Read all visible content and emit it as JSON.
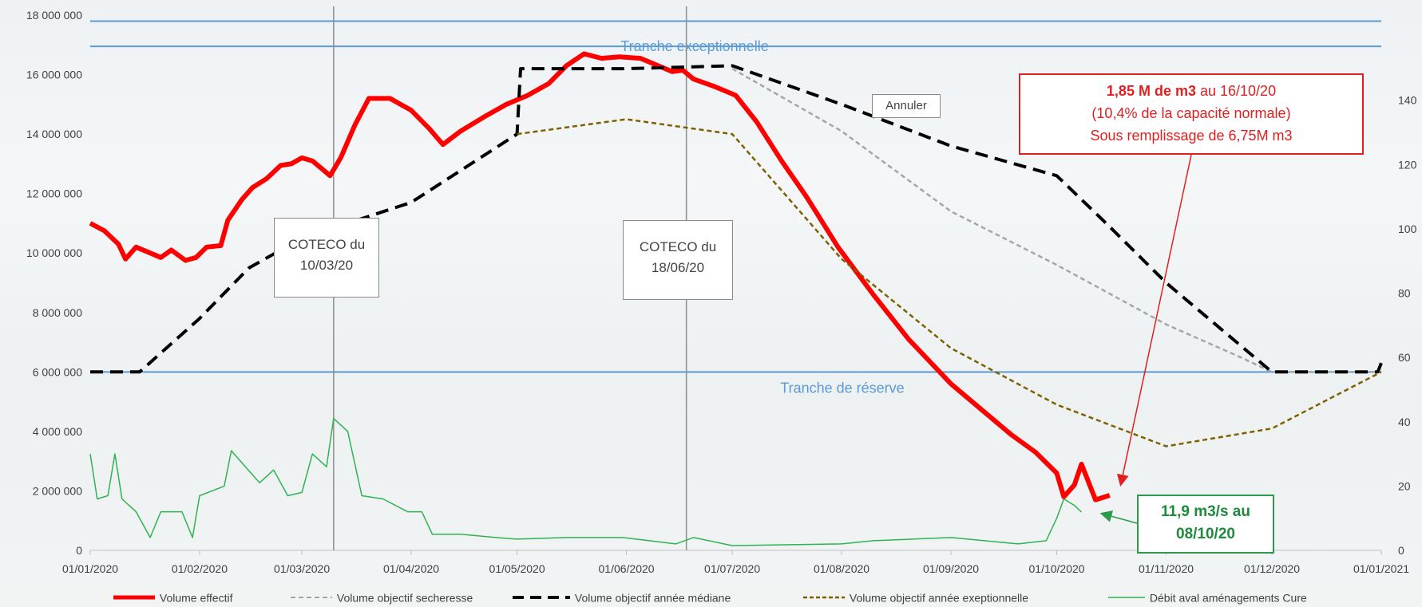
{
  "chart_data": {
    "type": "line",
    "y_left": {
      "min": 0,
      "max": 18000000,
      "ticks": [
        "0",
        "2 000 000",
        "4 000 000",
        "6 000 000",
        "8 000 000",
        "10 000 000",
        "12 000 000",
        "14 000 000",
        "16 000 000",
        "18 000 000"
      ]
    },
    "y_right": {
      "min": 0,
      "max": 160,
      "ticks": [
        "0",
        "20",
        "40",
        "60",
        "80",
        "100",
        "120",
        "140"
      ]
    },
    "x_range": [
      "2020-01-01",
      "2021-01-01"
    ],
    "x_ticks": [
      {
        "date": "2020-01-01",
        "label": "01/01/2020"
      },
      {
        "date": "2020-02-01",
        "label": "01/02/2020"
      },
      {
        "date": "2020-03-01",
        "label": "01/03/2020"
      },
      {
        "date": "2020-04-01",
        "label": "01/04/2020"
      },
      {
        "date": "2020-05-01",
        "label": "01/05/2020"
      },
      {
        "date": "2020-06-01",
        "label": "01/06/2020"
      },
      {
        "date": "2020-07-01",
        "label": "01/07/2020"
      },
      {
        "date": "2020-08-01",
        "label": "01/08/2020"
      },
      {
        "date": "2020-09-01",
        "label": "01/09/2020"
      },
      {
        "date": "2020-10-01",
        "label": "01/10/2020"
      },
      {
        "date": "2020-11-01",
        "label": "01/11/2020"
      },
      {
        "date": "2020-12-01",
        "label": "01/12/2020"
      },
      {
        "date": "2021-01-01",
        "label": "01/01/2021"
      }
    ],
    "grid": false,
    "legend_position": "bottom",
    "horizontal_lines": [
      {
        "label": "Tranche exceptionnelle",
        "values": [
          16950000,
          17800000
        ],
        "color": "#5b9bd5"
      },
      {
        "label": "Tranche de réserve",
        "values": [
          6000000
        ],
        "color": "#5b9bd5"
      }
    ],
    "vertical_markers": [
      {
        "date": "2020-03-10",
        "label_line1": "COTECO du",
        "label_line2": "10/03/20"
      },
      {
        "date": "2020-06-18",
        "label_line1": "COTECO du",
        "label_line2": "18/06/20"
      }
    ],
    "series": [
      {
        "name": "Volume effectif",
        "color": "#ff0000",
        "style": "solid-thick",
        "axis": "left",
        "points": [
          [
            "2020-01-01",
            11000000
          ],
          [
            "2020-01-05",
            10750000
          ],
          [
            "2020-01-09",
            10300000
          ],
          [
            "2020-01-11",
            9800000
          ],
          [
            "2020-01-14",
            10200000
          ],
          [
            "2020-01-18",
            10000000
          ],
          [
            "2020-01-21",
            9850000
          ],
          [
            "2020-01-24",
            10100000
          ],
          [
            "2020-01-28",
            9750000
          ],
          [
            "2020-01-31",
            9850000
          ],
          [
            "2020-02-03",
            10200000
          ],
          [
            "2020-02-07",
            10250000
          ],
          [
            "2020-02-09",
            11100000
          ],
          [
            "2020-02-13",
            11800000
          ],
          [
            "2020-02-16",
            12200000
          ],
          [
            "2020-02-20",
            12500000
          ],
          [
            "2020-02-24",
            12950000
          ],
          [
            "2020-02-27",
            13000000
          ],
          [
            "2020-03-01",
            13200000
          ],
          [
            "2020-03-04",
            13100000
          ],
          [
            "2020-03-07",
            12800000
          ],
          [
            "2020-03-09",
            12600000
          ],
          [
            "2020-03-12",
            13200000
          ],
          [
            "2020-03-16",
            14300000
          ],
          [
            "2020-03-20",
            15200000
          ],
          [
            "2020-03-26",
            15200000
          ],
          [
            "2020-04-01",
            14800000
          ],
          [
            "2020-04-06",
            14200000
          ],
          [
            "2020-04-10",
            13650000
          ],
          [
            "2020-04-15",
            14100000
          ],
          [
            "2020-04-22",
            14600000
          ],
          [
            "2020-04-28",
            15000000
          ],
          [
            "2020-05-04",
            15300000
          ],
          [
            "2020-05-10",
            15700000
          ],
          [
            "2020-05-15",
            16300000
          ],
          [
            "2020-05-20",
            16700000
          ],
          [
            "2020-05-25",
            16550000
          ],
          [
            "2020-05-30",
            16600000
          ],
          [
            "2020-06-05",
            16550000
          ],
          [
            "2020-06-10",
            16300000
          ],
          [
            "2020-06-14",
            16100000
          ],
          [
            "2020-06-17",
            16150000
          ],
          [
            "2020-06-20",
            15850000
          ],
          [
            "2020-06-26",
            15600000
          ],
          [
            "2020-07-02",
            15300000
          ],
          [
            "2020-07-08",
            14400000
          ],
          [
            "2020-07-15",
            13100000
          ],
          [
            "2020-07-22",
            11900000
          ],
          [
            "2020-07-31",
            10200000
          ],
          [
            "2020-08-10",
            8600000
          ],
          [
            "2020-08-20",
            7100000
          ],
          [
            "2020-09-01",
            5600000
          ],
          [
            "2020-09-10",
            4700000
          ],
          [
            "2020-09-18",
            3900000
          ],
          [
            "2020-09-25",
            3300000
          ],
          [
            "2020-10-01",
            2600000
          ],
          [
            "2020-10-03",
            1800000
          ],
          [
            "2020-10-06",
            2200000
          ],
          [
            "2020-10-08",
            2900000
          ],
          [
            "2020-10-12",
            1700000
          ],
          [
            "2020-10-16",
            1850000
          ]
        ]
      },
      {
        "name": "Volume objectif secheresse",
        "color": "#a6a6a6",
        "style": "dashed-thin",
        "axis": "left",
        "points": [
          [
            "2020-07-01",
            16200000
          ],
          [
            "2020-08-01",
            14100000
          ],
          [
            "2020-09-01",
            11400000
          ],
          [
            "2020-10-01",
            9600000
          ],
          [
            "2020-11-01",
            7600000
          ],
          [
            "2020-11-22",
            6500000
          ],
          [
            "2020-12-01",
            6000000
          ],
          [
            "2021-01-01",
            6000000
          ]
        ]
      },
      {
        "name": "Volume objectif année médiane",
        "color": "#000000",
        "style": "dashed-thick",
        "axis": "left",
        "points": [
          [
            "2020-01-01",
            6000000
          ],
          [
            "2020-01-15",
            6000000
          ],
          [
            "2020-02-01",
            7800000
          ],
          [
            "2020-02-15",
            9500000
          ],
          [
            "2020-03-01",
            10500000
          ],
          [
            "2020-04-01",
            11700000
          ],
          [
            "2020-05-01",
            14000000
          ],
          [
            "2020-05-02",
            16200000
          ],
          [
            "2020-06-01",
            16200000
          ],
          [
            "2020-07-01",
            16300000
          ],
          [
            "2020-08-01",
            15000000
          ],
          [
            "2020-09-01",
            13600000
          ],
          [
            "2020-10-01",
            12600000
          ],
          [
            "2020-10-15",
            11000000
          ],
          [
            "2020-11-01",
            9000000
          ],
          [
            "2020-12-01",
            6000000
          ],
          [
            "2020-12-31",
            6000000
          ],
          [
            "2021-01-01",
            6300000
          ]
        ]
      },
      {
        "name": "Volume objectif année exeptionnelle",
        "color": "#7f6000",
        "style": "dashed-thin",
        "axis": "left",
        "points": [
          [
            "2020-05-01",
            14000000
          ],
          [
            "2020-06-01",
            14500000
          ],
          [
            "2020-07-01",
            14000000
          ],
          [
            "2020-08-01",
            9800000
          ],
          [
            "2020-09-01",
            6800000
          ],
          [
            "2020-10-01",
            4900000
          ],
          [
            "2020-11-01",
            3500000
          ],
          [
            "2020-12-01",
            4100000
          ],
          [
            "2021-01-01",
            6000000
          ]
        ]
      },
      {
        "name": "Débit aval aménagements Cure",
        "color": "#2db351",
        "style": "solid-thin",
        "axis": "right",
        "points": [
          [
            "2020-01-01",
            30
          ],
          [
            "2020-01-03",
            16
          ],
          [
            "2020-01-06",
            17
          ],
          [
            "2020-01-08",
            30
          ],
          [
            "2020-01-10",
            16
          ],
          [
            "2020-01-14",
            12
          ],
          [
            "2020-01-18",
            4
          ],
          [
            "2020-01-21",
            12
          ],
          [
            "2020-01-27",
            12
          ],
          [
            "2020-01-30",
            4
          ],
          [
            "2020-02-01",
            17
          ],
          [
            "2020-02-08",
            20
          ],
          [
            "2020-02-10",
            31
          ],
          [
            "2020-02-14",
            26
          ],
          [
            "2020-02-18",
            21
          ],
          [
            "2020-02-22",
            25
          ],
          [
            "2020-02-26",
            17
          ],
          [
            "2020-03-01",
            18
          ],
          [
            "2020-03-04",
            30
          ],
          [
            "2020-03-08",
            26
          ],
          [
            "2020-03-10",
            41
          ],
          [
            "2020-03-14",
            37
          ],
          [
            "2020-03-18",
            17
          ],
          [
            "2020-03-24",
            16
          ],
          [
            "2020-03-31",
            12
          ],
          [
            "2020-04-04",
            12
          ],
          [
            "2020-04-07",
            5
          ],
          [
            "2020-04-15",
            5
          ],
          [
            "2020-04-25",
            4
          ],
          [
            "2020-05-01",
            3.5
          ],
          [
            "2020-05-15",
            4
          ],
          [
            "2020-05-31",
            4
          ],
          [
            "2020-06-15",
            2
          ],
          [
            "2020-06-20",
            4
          ],
          [
            "2020-07-01",
            1.5
          ],
          [
            "2020-08-01",
            2
          ],
          [
            "2020-08-10",
            3
          ],
          [
            "2020-09-01",
            4
          ],
          [
            "2020-09-20",
            2
          ],
          [
            "2020-09-28",
            3
          ],
          [
            "2020-10-01",
            10
          ],
          [
            "2020-10-03",
            16
          ],
          [
            "2020-10-06",
            14
          ],
          [
            "2020-10-08",
            11.9
          ]
        ]
      }
    ],
    "annotations": {
      "annuler": "Annuler",
      "callout_volume": {
        "line1_bold": "1,85 M de m3",
        "line1_rest": " au 16/10/20",
        "line2": "(10,4% de la capacité normale)",
        "line3": "Sous remplissage de 6,75M m3",
        "target": [
          "2020-10-16",
          1850000
        ]
      },
      "callout_debit": {
        "line1": "11,9 m3/s au",
        "line2": "08/10/20",
        "target": [
          "2020-10-08",
          11.9
        ]
      }
    }
  }
}
